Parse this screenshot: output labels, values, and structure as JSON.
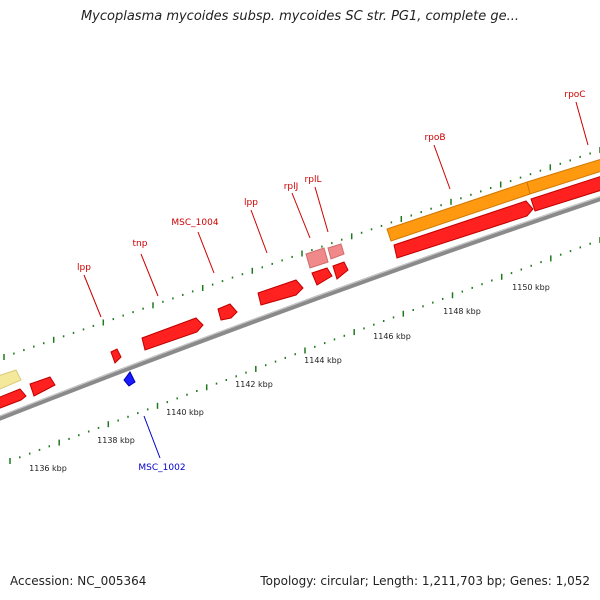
{
  "title": "Mycoplasma mycoides subsp. mycoides SC str. PG1, complete ge...",
  "footer": {
    "accession": "Accession: NC_005364",
    "summary": "Topology: circular; Length: 1,211,703 bp; Genes: 1,052"
  },
  "colors": {
    "forward_cds": "#ff2020",
    "reverse_cds": "#1a1aff",
    "rRNA": "#ff9a10",
    "tRNA_light": "#f08a8a",
    "other": "#f4e89a",
    "backbone": "#8a8a8a",
    "tick_green": "#1e7a1e",
    "label_red": "#cc0000",
    "label_blue": "#0000cc"
  },
  "tick_labels": [
    "1136 kbp",
    "1138 kbp",
    "1140 kbp",
    "1142 kbp",
    "1144 kbp",
    "1146 kbp",
    "1148 kbp",
    "1150 kbp"
  ],
  "gene_labels": {
    "lpp_left": "lpp",
    "tnp": "tnp",
    "msc_1004": "MSC_1004",
    "lpp_right": "lpp",
    "rplJ": "rplJ",
    "rplL": "rplL",
    "rpoB": "rpoB",
    "rpoC": "rpoC",
    "msc_1002": "MSC_1002"
  }
}
